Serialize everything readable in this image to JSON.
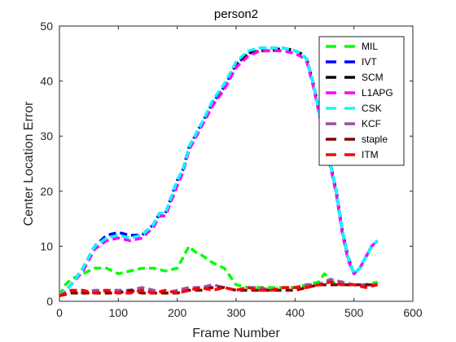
{
  "chart_data": {
    "type": "line",
    "title": "person2",
    "xlabel": "Frame Number",
    "ylabel": "Center Location Error",
    "xlim": [
      0,
      600
    ],
    "ylim": [
      0,
      50
    ],
    "xticks": [
      0,
      100,
      200,
      300,
      400,
      500,
      600
    ],
    "yticks": [
      0,
      10,
      20,
      30,
      40,
      50
    ],
    "grid": false,
    "legend_position": "top-right",
    "line_style": "dashed",
    "series": [
      {
        "name": "MIL",
        "color": "#00ff00",
        "x": [
          0,
          10,
          20,
          40,
          60,
          80,
          100,
          120,
          140,
          160,
          180,
          200,
          210,
          220,
          230,
          240,
          260,
          280,
          300,
          320,
          350,
          400,
          440,
          450,
          470,
          500,
          520,
          540
        ],
        "y": [
          1,
          3,
          4,
          5,
          6,
          6,
          5,
          5.5,
          6,
          6,
          5.5,
          6,
          8,
          10,
          9,
          8.5,
          7,
          6,
          3,
          2.5,
          2.5,
          2.5,
          3.5,
          5,
          3,
          3,
          3,
          3.5
        ]
      },
      {
        "name": "IVT",
        "color": "#0000ff",
        "x": [
          0,
          20,
          40,
          60,
          80,
          100,
          120,
          140,
          160,
          170,
          180,
          200,
          210,
          220,
          240,
          260,
          280,
          300,
          320,
          340,
          360,
          380,
          400,
          410,
          420,
          430,
          440,
          450,
          460,
          470,
          480,
          490,
          500,
          510,
          520,
          530,
          540
        ],
        "y": [
          1,
          3,
          6,
          10,
          12,
          12.5,
          12,
          12,
          14,
          16,
          16,
          22,
          24,
          28,
          32,
          36,
          39,
          43,
          45,
          46,
          46,
          46,
          45.5,
          45,
          44,
          40,
          35,
          30,
          25,
          20,
          13,
          8,
          5,
          6,
          8,
          10,
          11
        ]
      },
      {
        "name": "SCM",
        "color": "#000000",
        "x": [
          0,
          20,
          40,
          60,
          80,
          100,
          120,
          140,
          160,
          170,
          180,
          200,
          210,
          220,
          240,
          260,
          280,
          300,
          320,
          340,
          360,
          380,
          400,
          410,
          420,
          430,
          440,
          450,
          460,
          470,
          480,
          490,
          500,
          510,
          520,
          530,
          540
        ],
        "y": [
          1,
          3,
          6,
          10,
          11.5,
          12,
          11.5,
          12,
          14,
          16,
          16,
          21.5,
          24,
          28,
          32,
          36,
          39,
          43,
          45,
          45.5,
          45.5,
          46,
          45.5,
          45,
          44,
          40,
          35,
          30,
          25,
          20,
          13,
          8,
          5,
          6,
          8,
          10,
          11
        ]
      },
      {
        "name": "L1APG",
        "color": "#ff00ff",
        "x": [
          0,
          20,
          40,
          60,
          80,
          100,
          120,
          140,
          160,
          170,
          180,
          200,
          210,
          220,
          240,
          260,
          280,
          300,
          320,
          340,
          360,
          380,
          400,
          410,
          420,
          430,
          440,
          450,
          460,
          470,
          480,
          490,
          500,
          510,
          520,
          530,
          540
        ],
        "y": [
          1,
          3,
          5.5,
          9.5,
          11,
          11.5,
          11,
          11.5,
          13.5,
          15.5,
          15.5,
          21,
          23.5,
          27.5,
          31.5,
          35.5,
          38.5,
          42.5,
          44.5,
          45.5,
          45.5,
          45.5,
          45,
          44.5,
          43.5,
          39.5,
          34.5,
          29.5,
          24.5,
          19.5,
          12.5,
          7.5,
          5,
          6,
          8,
          10,
          11
        ]
      },
      {
        "name": "CSK",
        "color": "#00ffff",
        "x": [
          0,
          20,
          40,
          60,
          80,
          100,
          120,
          140,
          160,
          170,
          180,
          200,
          210,
          220,
          240,
          260,
          280,
          300,
          320,
          340,
          360,
          380,
          400,
          410,
          420,
          430,
          440,
          450,
          460,
          470,
          480,
          490,
          500,
          510,
          520,
          530,
          540
        ],
        "y": [
          1,
          3,
          6,
          10,
          11.5,
          12,
          11.5,
          12,
          14,
          16,
          16,
          22,
          24,
          28,
          32,
          36.5,
          39.5,
          43.5,
          45.5,
          46,
          46,
          46,
          45.5,
          45,
          44,
          40,
          35,
          30,
          25,
          20,
          13,
          8,
          5,
          6,
          8,
          10,
          11
        ]
      },
      {
        "name": "KCF",
        "color": "#9e4fa0",
        "x": [
          0,
          20,
          40,
          60,
          80,
          100,
          120,
          140,
          160,
          180,
          200,
          220,
          240,
          260,
          280,
          300,
          320,
          340,
          360,
          380,
          400,
          420,
          440,
          460,
          480,
          500,
          520,
          540
        ],
        "y": [
          1,
          2,
          1.5,
          2,
          2,
          2,
          2,
          2.5,
          2,
          1.5,
          2,
          2.5,
          2.5,
          3,
          2.5,
          2,
          2.5,
          2.5,
          2,
          2.5,
          2.5,
          3,
          3,
          4,
          3.5,
          3,
          3,
          3
        ]
      },
      {
        "name": "staple",
        "color": "#7f0000",
        "x": [
          0,
          20,
          40,
          60,
          80,
          100,
          120,
          140,
          160,
          180,
          200,
          220,
          240,
          260,
          280,
          300,
          320,
          340,
          360,
          380,
          400,
          420,
          440,
          460,
          480,
          500,
          520,
          540
        ],
        "y": [
          1,
          1.5,
          1.5,
          1.5,
          1.5,
          1.5,
          2,
          1.5,
          1.5,
          1.5,
          1.5,
          2,
          2,
          2.5,
          2.5,
          2,
          2,
          2,
          2,
          2,
          2,
          2.5,
          3,
          3,
          3,
          3,
          3,
          3
        ]
      },
      {
        "name": "ITM",
        "color": "#ff0000",
        "x": [
          0,
          20,
          40,
          60,
          80,
          100,
          120,
          140,
          160,
          180,
          200,
          220,
          240,
          260,
          280,
          300,
          320,
          340,
          360,
          380,
          400,
          420,
          440,
          460,
          480,
          500,
          520,
          540
        ],
        "y": [
          1,
          2,
          2,
          1.5,
          2,
          1.5,
          1.5,
          2,
          1.5,
          2,
          1.5,
          2,
          2.5,
          2,
          2.5,
          2,
          2.5,
          2,
          2,
          2.5,
          2.5,
          2.5,
          3,
          3.5,
          3,
          3,
          2.5,
          3
        ]
      }
    ]
  }
}
